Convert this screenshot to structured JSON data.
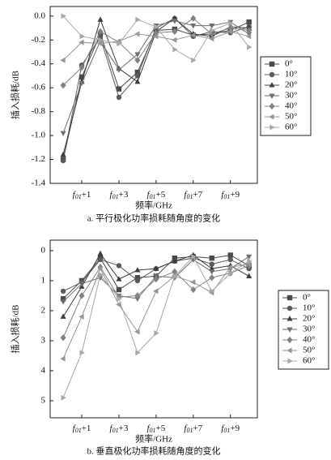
{
  "chart_data": [
    {
      "type": "line",
      "caption": "a. 平行极化功率损耗随角度的变化",
      "x_label": "频率/GHz",
      "y_label": "插入损耗/dB",
      "x": [
        0,
        1,
        2,
        3,
        4,
        5,
        6,
        7,
        8,
        9,
        10
      ],
      "xlim": [
        -0.7,
        10.45
      ],
      "xticks": [
        {
          "value": 1,
          "label": "f01+1"
        },
        {
          "value": 3,
          "label": "f01+3"
        },
        {
          "value": 5,
          "label": "f01+5"
        },
        {
          "value": 7,
          "label": "f01+7"
        },
        {
          "value": 9,
          "label": "f01+9"
        }
      ],
      "ylim": [
        -1.4,
        0.08
      ],
      "yticks": [
        {
          "value": 0,
          "label": "0.0"
        },
        -0.2,
        -0.4,
        -0.6,
        -0.8,
        {
          "value": -1,
          "label": "-1.0"
        },
        -1.2,
        -1.4
      ],
      "legend": "right",
      "series": [
        {
          "name": "0°",
          "color": "#4a4a4a",
          "marker": "square",
          "values": [
            -1.2,
            -0.51,
            -0.15,
            -0.61,
            -0.47,
            -0.12,
            -0.11,
            -0.16,
            -0.15,
            -0.12,
            -0.05
          ]
        },
        {
          "name": "10°",
          "color": "#5a5a5a",
          "marker": "circle",
          "values": [
            -1.21,
            -0.41,
            -0.18,
            -0.68,
            -0.5,
            -0.1,
            -0.02,
            -0.17,
            -0.13,
            -0.14,
            -0.09
          ]
        },
        {
          "name": "20°",
          "color": "#3c3c3c",
          "marker": "triangle-up",
          "values": [
            -1.16,
            -0.55,
            -0.03,
            -0.44,
            -0.55,
            -0.13,
            -0.02,
            -0.15,
            -0.17,
            -0.09,
            -0.1
          ]
        },
        {
          "name": "30°",
          "color": "#6e6e6e",
          "marker": "triangle-down",
          "values": [
            -0.98,
            -0.56,
            -0.21,
            -0.45,
            -0.32,
            -0.08,
            -0.04,
            -0.08,
            -0.08,
            -0.05,
            -0.15
          ]
        },
        {
          "name": "40°",
          "color": "#828282",
          "marker": "diamond",
          "values": [
            -0.58,
            -0.43,
            -0.13,
            -0.22,
            -0.37,
            -0.14,
            -0.13,
            -0.02,
            -0.15,
            -0.1,
            -0.12
          ]
        },
        {
          "name": "50°",
          "color": "#969696",
          "marker": "triangle-left",
          "values": [
            -0.37,
            -0.22,
            -0.23,
            -0.21,
            -0.15,
            -0.17,
            -0.2,
            -0.16,
            -0.19,
            -0.13,
            -0.17
          ]
        },
        {
          "name": "60°",
          "color": "#a8a8a8",
          "marker": "triangle-right",
          "values": [
            0,
            -0.17,
            -0.2,
            -0.23,
            -0.03,
            -0.09,
            -0.28,
            -0.37,
            -0.12,
            -0.06,
            -0.26
          ]
        }
      ]
    },
    {
      "type": "line",
      "caption": "b. 垂直极化功率损耗随角度的变化",
      "x_label": "频率/GHz",
      "y_label": "插入损耗/dB",
      "x": [
        0,
        1,
        2,
        3,
        4,
        5,
        6,
        7,
        8,
        9,
        10
      ],
      "xlim": [
        -0.7,
        10.45
      ],
      "xticks": [
        {
          "value": 1,
          "label": "f01+1"
        },
        {
          "value": 3,
          "label": "f01+3"
        },
        {
          "value": 5,
          "label": "f01+5"
        },
        {
          "value": 7,
          "label": "f01+7"
        },
        {
          "value": 9,
          "label": "f01+9"
        }
      ],
      "ylim": [
        -0.35,
        5.57
      ],
      "y_inverted": true,
      "yticks": [
        0,
        1,
        2,
        3,
        4,
        5
      ],
      "legend": "right",
      "series": [
        {
          "name": "0°",
          "color": "#4a4a4a",
          "marker": "square",
          "values": [
            1.6,
            1.0,
            0.25,
            1.3,
            0.9,
            0.85,
            0.25,
            0.2,
            0.25,
            0.15,
            0.5
          ]
        },
        {
          "name": "10°",
          "color": "#5a5a5a",
          "marker": "circle",
          "values": [
            1.35,
            1.05,
            0.3,
            0.5,
            1.0,
            0.6,
            0.35,
            0.25,
            0.45,
            0.3,
            0.6
          ]
        },
        {
          "name": "20°",
          "color": "#3c3c3c",
          "marker": "triangle-up",
          "values": [
            2.2,
            1.2,
            0.1,
            0.95,
            0.65,
            0.6,
            0.35,
            0.15,
            0.6,
            0.5,
            0.85
          ]
        },
        {
          "name": "30°",
          "color": "#6e6e6e",
          "marker": "triangle-down",
          "values": [
            1.7,
            1.1,
            0.9,
            1.5,
            1.6,
            0.85,
            0.9,
            0.3,
            0.7,
            0.6,
            0.2
          ]
        },
        {
          "name": "40°",
          "color": "#828282",
          "marker": "diamond",
          "values": [
            2.9,
            1.5,
            0.55,
            1.55,
            1.5,
            0.95,
            0.7,
            1.3,
            0.9,
            0.75,
            0.5
          ]
        },
        {
          "name": "50°",
          "color": "#969696",
          "marker": "triangle-left",
          "values": [
            3.6,
            2.2,
            0.6,
            1.8,
            2.7,
            1.35,
            0.85,
            1.05,
            1.4,
            0.55,
            0.45
          ]
        },
        {
          "name": "60°",
          "color": "#a8a8a8",
          "marker": "triangle-right",
          "values": [
            4.9,
            3.4,
            0.8,
            1.6,
            3.4,
            2.75,
            0.85,
            0.2,
            1.35,
            0.75,
            0.35
          ]
        }
      ]
    }
  ]
}
